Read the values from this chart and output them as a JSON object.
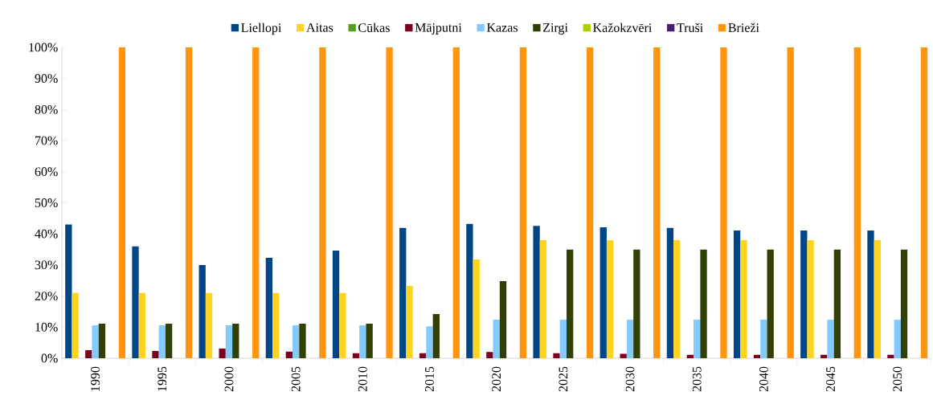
{
  "chart_data": {
    "type": "bar",
    "categories": [
      "1990",
      "1995",
      "2000",
      "2005",
      "2010",
      "2015",
      "2020",
      "2025",
      "2030",
      "2035",
      "2040",
      "2045",
      "2050"
    ],
    "series": [
      {
        "name": "Liellopi",
        "color": "#004586",
        "values": [
          43,
          36,
          30,
          32.3,
          34.6,
          41.9,
          43.2,
          42.6,
          42.1,
          41.9,
          41.1,
          41.1,
          41.1
        ]
      },
      {
        "name": "Aitas",
        "color": "#ffd320",
        "values": [
          21,
          21,
          21,
          21,
          21,
          23.3,
          31.8,
          38,
          38,
          38,
          38,
          38,
          38
        ]
      },
      {
        "name": "Cūkas",
        "color": "#579d1c",
        "values": [
          0,
          0,
          0,
          0,
          0,
          0,
          0,
          0,
          0,
          0,
          0,
          0,
          0
        ]
      },
      {
        "name": "Mājputni",
        "color": "#7e0021",
        "values": [
          2.6,
          2.3,
          3.1,
          2.1,
          1.6,
          1.6,
          2,
          1.6,
          1.4,
          1.1,
          1.1,
          1.1,
          1.1
        ]
      },
      {
        "name": "Kazas",
        "color": "#83caff",
        "values": [
          10.6,
          10.6,
          10.6,
          10.6,
          10.6,
          10.3,
          12.4,
          12.4,
          12.4,
          12.4,
          12.4,
          12.4,
          12.4
        ]
      },
      {
        "name": "Zirgi",
        "color": "#314004",
        "values": [
          11.1,
          11.1,
          11.1,
          11.1,
          11.1,
          14.2,
          24.8,
          35,
          35,
          35,
          35,
          35,
          35
        ]
      },
      {
        "name": "Kažokzvēri",
        "color": "#aecf00",
        "values": [
          0,
          0,
          0,
          0,
          0,
          0,
          0,
          0,
          0,
          0,
          0,
          0,
          0
        ]
      },
      {
        "name": "Truši",
        "color": "#4b1f6f",
        "values": [
          0,
          0,
          0,
          0,
          0,
          0,
          0,
          0,
          0,
          0,
          0,
          0,
          0
        ]
      },
      {
        "name": "Brieži",
        "color": "#ff950e",
        "values": [
          100,
          100,
          100,
          100,
          100,
          100,
          100,
          100,
          100,
          100,
          100,
          100,
          100
        ]
      }
    ],
    "ylim": [
      0,
      100
    ],
    "yticks": [
      {
        "value": 0,
        "label": "0%"
      },
      {
        "value": 10,
        "label": "10%"
      },
      {
        "value": 20,
        "label": "20%"
      },
      {
        "value": 30,
        "label": "30%"
      },
      {
        "value": 40,
        "label": "40%"
      },
      {
        "value": 50,
        "label": "50%"
      },
      {
        "value": 60,
        "label": "60%"
      },
      {
        "value": 70,
        "label": "70%"
      },
      {
        "value": 80,
        "label": "80%"
      },
      {
        "value": 90,
        "label": "90%"
      },
      {
        "value": 100,
        "label": "100%"
      }
    ],
    "grid": false,
    "legend": "top"
  }
}
